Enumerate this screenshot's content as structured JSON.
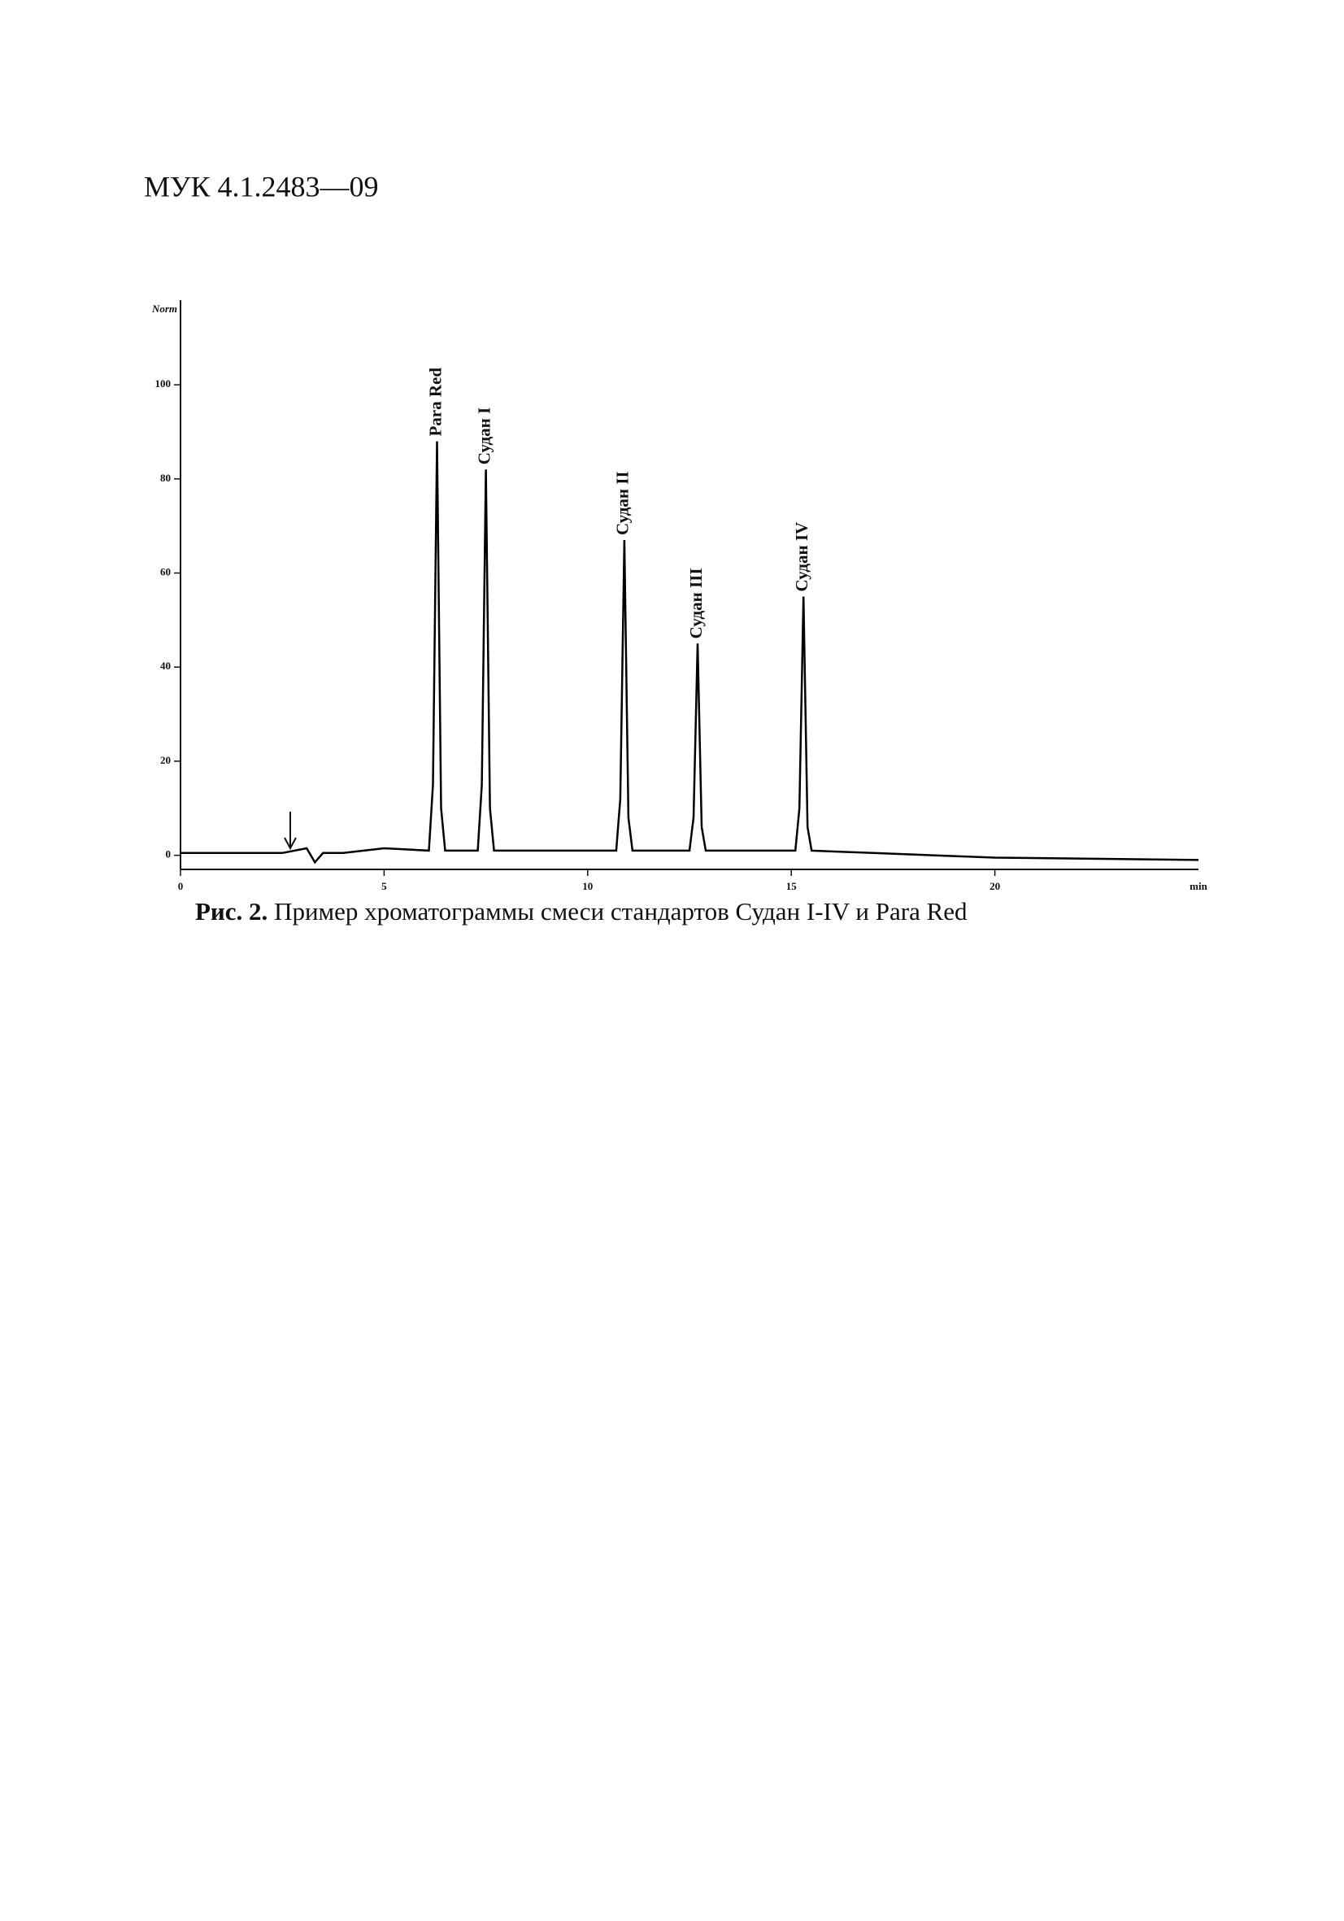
{
  "header": {
    "code": "МУК 4.1.2483—09"
  },
  "chart_data": {
    "type": "line",
    "y_label": "Norm",
    "x_label": "min",
    "x": [
      0,
      2.5,
      3.1,
      3.3,
      3.5,
      4,
      5,
      6.1,
      6.2,
      6.3,
      6.4,
      6.5,
      7.3,
      7.4,
      7.5,
      7.6,
      7.7,
      10.7,
      10.8,
      10.9,
      11.0,
      11.1,
      12.5,
      12.6,
      12.7,
      12.8,
      12.9,
      15.1,
      15.2,
      15.3,
      15.4,
      15.5,
      17,
      20,
      25
    ],
    "values": [
      0.5,
      0.5,
      1.5,
      -1.5,
      0.5,
      0.5,
      1.5,
      1,
      15,
      88,
      10,
      1,
      1,
      15,
      82,
      10,
      1,
      1,
      12,
      67,
      8,
      1,
      1,
      8,
      45,
      6,
      1,
      1,
      10,
      55,
      6,
      1,
      0.5,
      -0.5,
      -1
    ],
    "color": "#000000",
    "xlim": [
      0,
      25
    ],
    "xticks": [
      0,
      5,
      10,
      15,
      20
    ],
    "ylim": [
      -3,
      118
    ],
    "yticks": [
      0,
      20,
      40,
      60,
      80,
      100
    ],
    "grid": false,
    "annotations": [
      {
        "text": "Para Red",
        "x": 6.3
      },
      {
        "text": "Судан I",
        "x": 7.5
      },
      {
        "text": "Судан II",
        "x": 10.9
      },
      {
        "text": "Судан III",
        "x": 12.7
      },
      {
        "text": "Судан IV",
        "x": 15.3
      }
    ]
  },
  "caption": {
    "label": "Рис. 2.",
    "text": "Пример хроматограммы смеси стандартов Судан I-IV и Para Red"
  }
}
